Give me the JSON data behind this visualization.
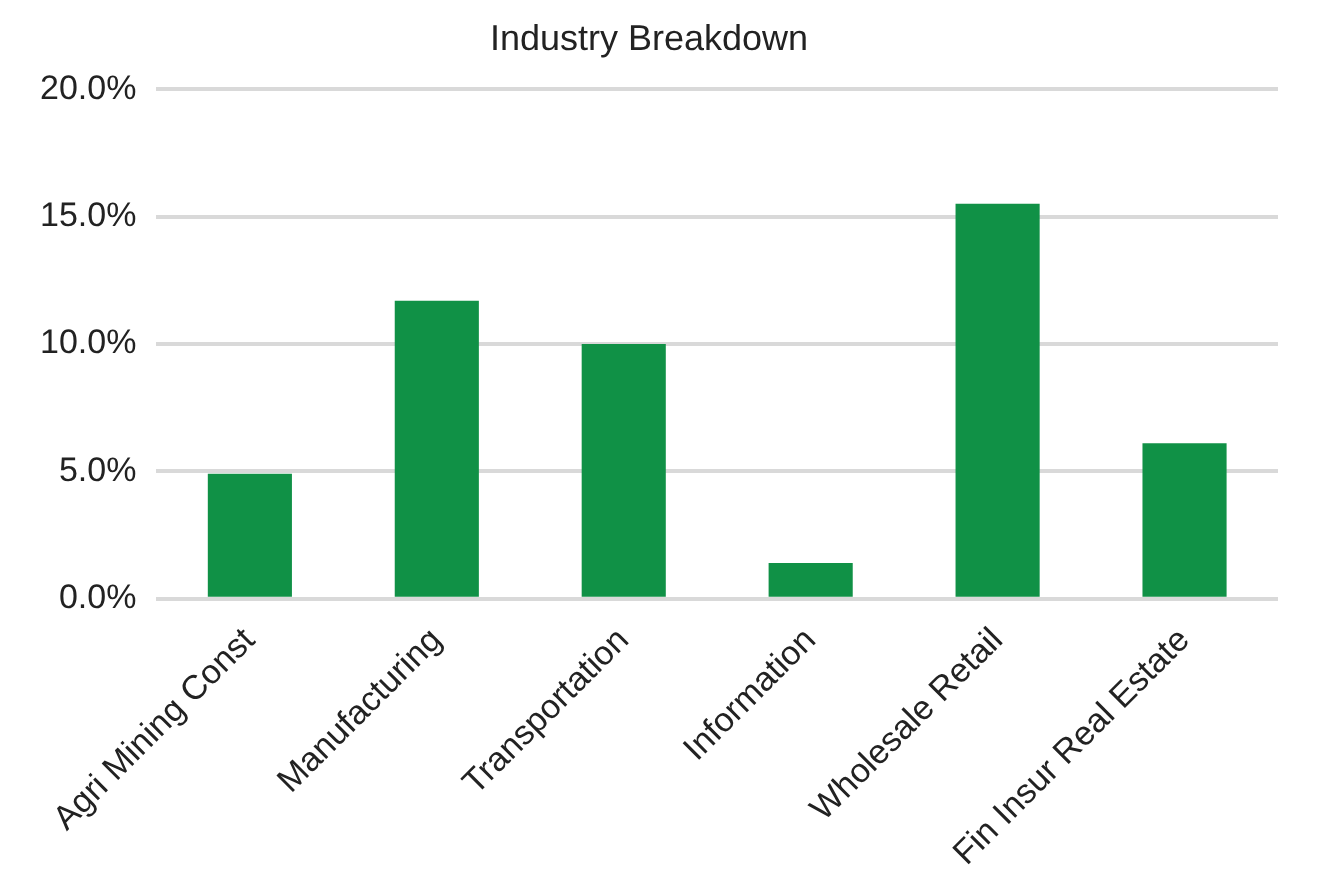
{
  "chart_data": {
    "type": "bar",
    "title": "Industry Breakdown",
    "categories": [
      "Agri Mining Const",
      "Manufacturing",
      "Transportation",
      "Information",
      "Wholesale Retail",
      "Fin Insur Real Estate"
    ],
    "values": [
      4.9,
      11.7,
      10.0,
      1.4,
      15.5,
      6.1
    ],
    "color": "#109146",
    "ylim": [
      0,
      20
    ],
    "yticks": [
      {
        "value": 0,
        "label": "0.0%"
      },
      {
        "value": 5,
        "label": "5.0%"
      },
      {
        "value": 10,
        "label": "10.0%"
      },
      {
        "value": 15,
        "label": "15.0%"
      },
      {
        "value": 20,
        "label": "20.0%"
      }
    ],
    "grid": "y",
    "legend": false
  }
}
